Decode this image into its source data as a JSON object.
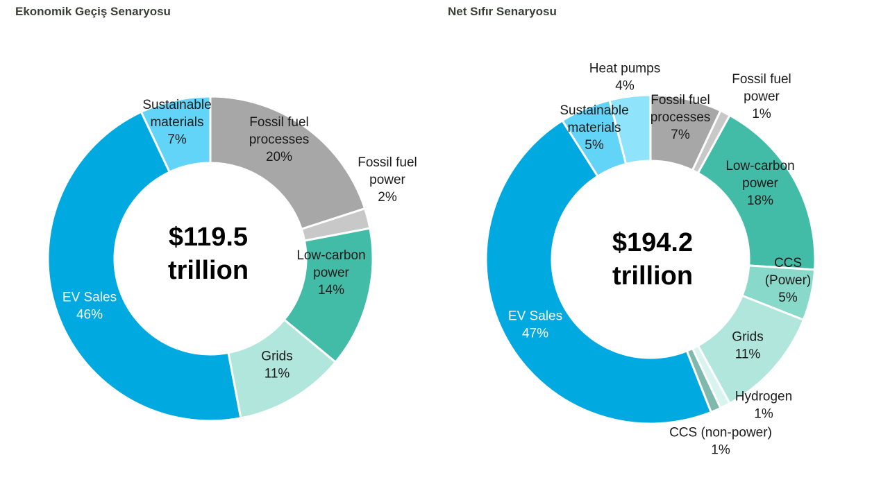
{
  "chart_data": [
    {
      "type": "pie",
      "title": "Ekonomik Geçiş Senaryosu",
      "total": [
        "$119.5",
        "trillion"
      ],
      "slices": [
        {
          "lines": [
            "Fossil fuel",
            "processes",
            "20%"
          ],
          "value": 20,
          "color": "#a7a7a7"
        },
        {
          "lines": [
            "Fossil fuel",
            "power",
            "2%"
          ],
          "value": 2,
          "color": "#c8c8c8"
        },
        {
          "lines": [
            "Low-carbon",
            "power",
            "14%"
          ],
          "value": 14,
          "color": "#42bca7"
        },
        {
          "lines": [
            "Grids",
            "11%"
          ],
          "value": 11,
          "color": "#b0e6dc"
        },
        {
          "lines": [
            "EV Sales",
            "46%"
          ],
          "value": 46,
          "color": "#00a9e0"
        },
        {
          "lines": [
            "Sustainable",
            "materials",
            "7%"
          ],
          "value": 7,
          "color": "#62d4f7"
        }
      ]
    },
    {
      "type": "pie",
      "title": "Net Sıfır Senaryosu",
      "total": [
        "$194.2",
        "trillion"
      ],
      "slices": [
        {
          "lines": [
            "Fossil fuel",
            "processes",
            "7%"
          ],
          "value": 7,
          "color": "#a7a7a7"
        },
        {
          "lines": [
            "Fossil fuel",
            "power",
            "1%"
          ],
          "value": 1,
          "color": "#c8c8c8"
        },
        {
          "lines": [
            "Low-carbon",
            "power",
            "18%"
          ],
          "value": 18,
          "color": "#42bca7"
        },
        {
          "lines": [
            "CCS",
            "(Power)",
            "5%"
          ],
          "value": 5,
          "color": "#88d9c9"
        },
        {
          "lines": [
            "Grids",
            "11%"
          ],
          "value": 11,
          "color": "#b0e6dc"
        },
        {
          "lines": [
            "Hydrogen",
            "1%"
          ],
          "value": 1,
          "color": "#d9f4ee"
        },
        {
          "lines": [
            "CCS (non-power)",
            "1%"
          ],
          "value": 1,
          "color": "#7fb8ad"
        },
        {
          "lines": [
            "EV Sales",
            "47%"
          ],
          "value": 47,
          "color": "#00a9e0"
        },
        {
          "lines": [
            "Sustainable",
            "materials",
            "5%"
          ],
          "value": 5,
          "color": "#62d4f7"
        },
        {
          "lines": [
            "Heat pumps",
            "4%"
          ],
          "value": 4,
          "color": "#8fe3fb"
        }
      ]
    }
  ]
}
